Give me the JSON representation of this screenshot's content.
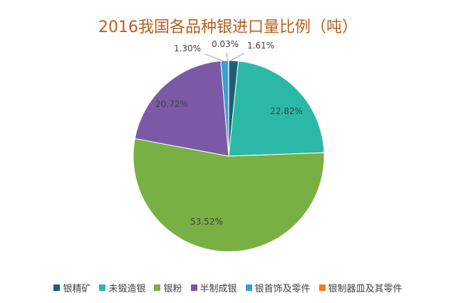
{
  "chart_data": {
    "type": "pie",
    "title": "2016我国各品种银进口量比例（吨）",
    "categories": [
      "银精矿",
      "未锻造银",
      "银粉",
      "半制成银",
      "银首饰及零件",
      "银制器皿及其零件"
    ],
    "values": [
      1.61,
      22.82,
      53.52,
      20.72,
      1.3,
      0.03
    ],
    "data_labels": [
      "1.61%",
      "22.82%",
      "53.52%",
      "20.72%",
      "1.30%",
      "0.03%"
    ],
    "colors": [
      "#1d5f78",
      "#2cb8a7",
      "#78b043",
      "#7a5aa6",
      "#3aa0cf",
      "#f07a1f"
    ],
    "legend_position": "bottom"
  }
}
